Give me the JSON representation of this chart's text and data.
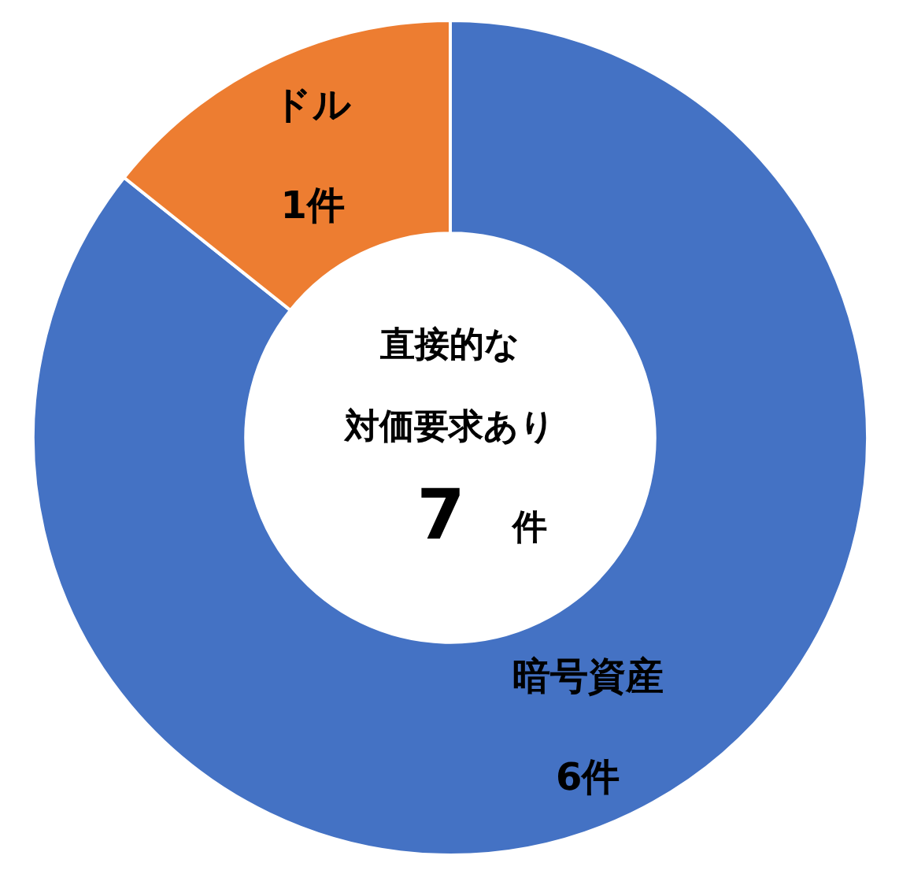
{
  "chart_data": {
    "type": "donut",
    "categories": [
      "暗号資産",
      "ドル"
    ],
    "values": [
      6,
      1
    ],
    "colors": [
      "#4472c4",
      "#ed7d31"
    ],
    "value_labels": [
      "6件",
      "1件"
    ],
    "annotations": [
      "直接的な",
      "対価要求あり",
      "7 件"
    ]
  }
}
